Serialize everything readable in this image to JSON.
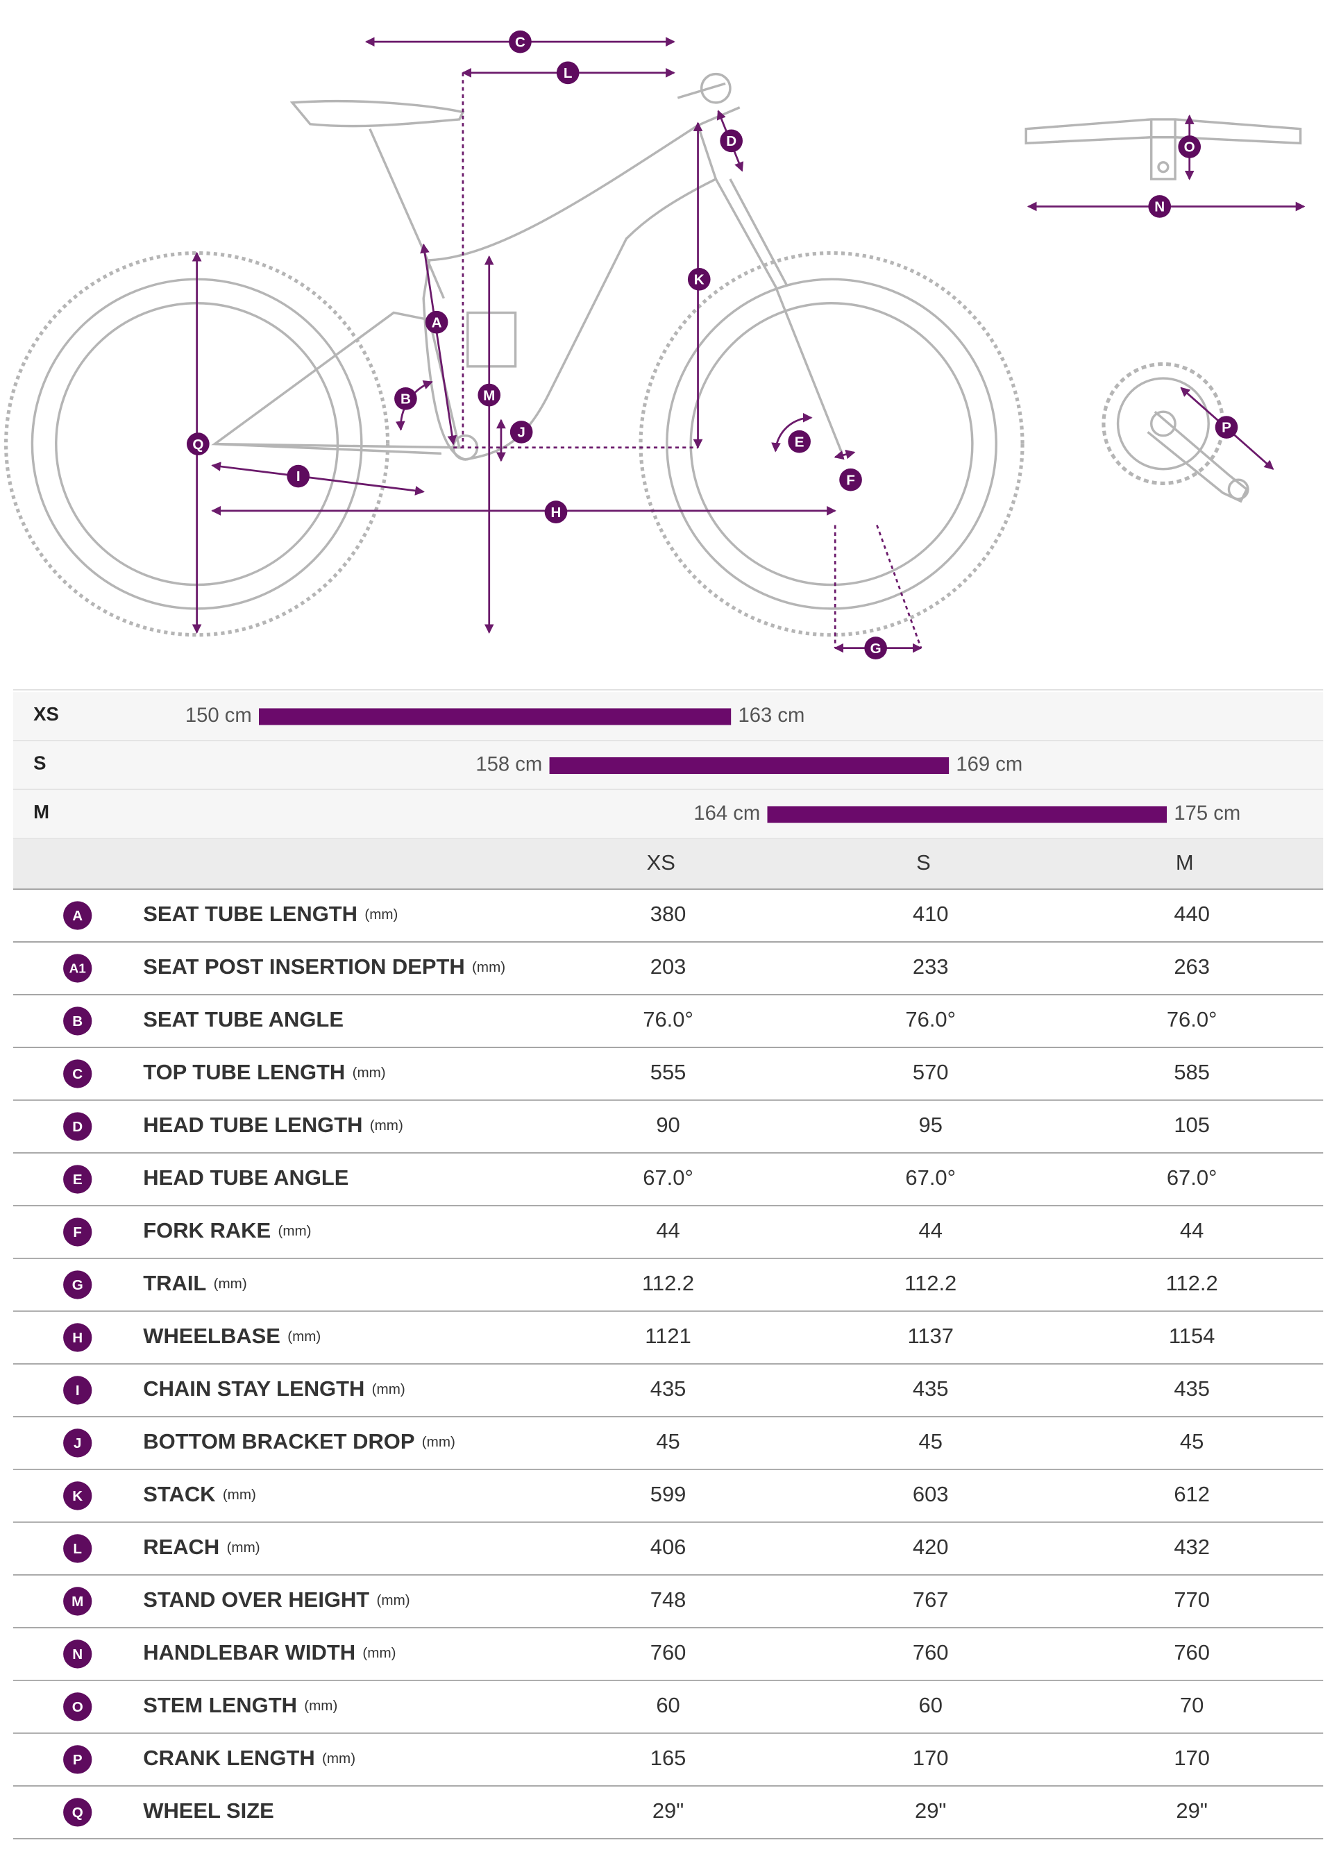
{
  "size_ranges": [
    {
      "size": "XS",
      "min": 150,
      "max": 163,
      "min_label": "150 cm",
      "max_label": "163 cm"
    },
    {
      "size": "S",
      "min": 158,
      "max": 169,
      "min_label": "158 cm",
      "max_label": "169 cm"
    },
    {
      "size": "M",
      "min": 164,
      "max": 175,
      "min_label": "164 cm",
      "max_label": "175 cm"
    }
  ],
  "table": {
    "columns": [
      "XS",
      "S",
      "M"
    ],
    "rows": [
      {
        "letter": "A",
        "label": "SEAT TUBE LENGTH",
        "unit": "(mm)",
        "values": [
          "380",
          "410",
          "440"
        ]
      },
      {
        "letter": "A1",
        "label": "SEAT POST INSERTION DEPTH",
        "unit": "(mm)",
        "values": [
          "203",
          "233",
          "263"
        ]
      },
      {
        "letter": "B",
        "label": "SEAT TUBE ANGLE",
        "values": [
          "76.0°",
          "76.0°",
          "76.0°"
        ]
      },
      {
        "letter": "C",
        "label": "TOP TUBE LENGTH",
        "unit": "(mm)",
        "values": [
          "555",
          "570",
          "585"
        ]
      },
      {
        "letter": "D",
        "label": "HEAD TUBE LENGTH",
        "unit": "(mm)",
        "values": [
          "90",
          "95",
          "105"
        ]
      },
      {
        "letter": "E",
        "label": "HEAD TUBE ANGLE",
        "values": [
          "67.0°",
          "67.0°",
          "67.0°"
        ]
      },
      {
        "letter": "F",
        "label": "FORK RAKE",
        "unit": "(mm)",
        "values": [
          "44",
          "44",
          "44"
        ]
      },
      {
        "letter": "G",
        "label": "TRAIL",
        "unit": "(mm)",
        "values": [
          "112.2",
          "112.2",
          "112.2"
        ]
      },
      {
        "letter": "H",
        "label": "WHEELBASE",
        "unit": "(mm)",
        "values": [
          "1121",
          "1137",
          "1154"
        ]
      },
      {
        "letter": "I",
        "label": "CHAIN STAY LENGTH",
        "unit": "(mm)",
        "values": [
          "435",
          "435",
          "435"
        ]
      },
      {
        "letter": "J",
        "label": "BOTTOM BRACKET DROP",
        "unit": "(mm)",
        "values": [
          "45",
          "45",
          "45"
        ]
      },
      {
        "letter": "K",
        "label": "STACK",
        "unit": "(mm)",
        "values": [
          "599",
          "603",
          "612"
        ]
      },
      {
        "letter": "L",
        "label": "REACH",
        "unit": "(mm)",
        "values": [
          "406",
          "420",
          "432"
        ]
      },
      {
        "letter": "M",
        "label": "STAND OVER HEIGHT",
        "unit": "(mm)",
        "values": [
          "748",
          "767",
          "770"
        ]
      },
      {
        "letter": "N",
        "label": "HANDLEBAR WIDTH",
        "unit": "(mm)",
        "values": [
          "760",
          "760",
          "760"
        ]
      },
      {
        "letter": "O",
        "label": "STEM LENGTH",
        "unit": "(mm)",
        "values": [
          "60",
          "60",
          "70"
        ]
      },
      {
        "letter": "P",
        "label": "CRANK LENGTH",
        "unit": "(mm)",
        "values": [
          "165",
          "170",
          "170"
        ]
      },
      {
        "letter": "Q",
        "label": "WHEEL SIZE",
        "values": [
          "29\"",
          "29\"",
          "29\""
        ]
      }
    ]
  }
}
